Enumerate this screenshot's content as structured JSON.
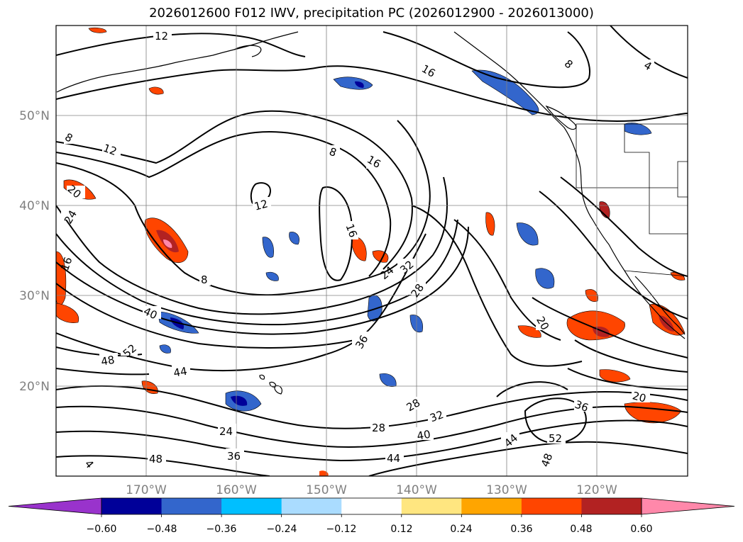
{
  "title": "2026012600 F012 IWV, precipitation PC (2026012900 - 2026013000)",
  "map": {
    "lat_ticks": [
      "50°N",
      "40°N",
      "30°N",
      "20°N"
    ],
    "lon_ticks": [
      "170°W",
      "160°W",
      "150°W",
      "140°W",
      "130°W",
      "120°W"
    ],
    "contour_labels": [
      "12",
      "16",
      "4",
      "8",
      "8",
      "12",
      "16",
      "8",
      "20",
      "24",
      "16",
      "12",
      "16",
      "32",
      "24",
      "28",
      "8",
      "40",
      "20",
      "36",
      "48",
      "52",
      "44",
      "28",
      "32",
      "20",
      "36",
      "28",
      "40",
      "44",
      "52",
      "48",
      "24",
      "36",
      "48",
      "44",
      "4"
    ]
  },
  "colorbar": {
    "labels": [
      "−0.60",
      "−0.48",
      "−0.36",
      "−0.24",
      "−0.12",
      "0.12",
      "0.24",
      "0.36",
      "0.48",
      "0.60"
    ],
    "colors": {
      "under": "#9933cc",
      "bins": [
        "#000099",
        "#3366cc",
        "#00bfff",
        "#aadcff",
        "#ffffff",
        "#ffe680",
        "#ffa500",
        "#ff4500",
        "#b22222",
        "#ff88aa"
      ],
      "over": "#ff88aa"
    }
  }
}
